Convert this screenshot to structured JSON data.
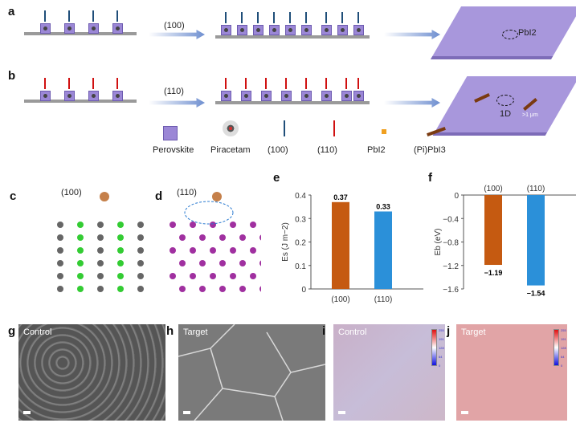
{
  "panels": {
    "a": "a",
    "b": "b",
    "c": "c",
    "d": "d",
    "e": "e",
    "f": "f",
    "g": "g",
    "h": "h",
    "i": "i",
    "j": "j"
  },
  "schematic": {
    "arrow_a_label": "(100)",
    "arrow_b_label": "(110)",
    "a_3d_label": "PbI2",
    "b_3d_label": "1D",
    "b_3d_size": ">1 μm"
  },
  "legend": [
    {
      "label": "Perovskite",
      "icon": "perovskite-cube-icon"
    },
    {
      "label": "Piracetam",
      "icon": "piracetam-molecule-icon"
    },
    {
      "label": "(100)",
      "icon": "arrow-blue-icon",
      "color": "#1f4e79"
    },
    {
      "label": "(110)",
      "icon": "arrow-red-icon",
      "color": "#d01010"
    },
    {
      "label": "PbI2",
      "icon": "pbi2-square-icon",
      "color": "#f0a020"
    },
    {
      "label": "(Pi)PbI3",
      "icon": "rod-icon",
      "color": "#7a3a10"
    }
  ],
  "structures": {
    "c_label": "(100)",
    "d_label": "(110)"
  },
  "chart_data": [
    {
      "type": "bar",
      "panel": "e",
      "categories": [
        "(100)",
        "(110)"
      ],
      "values": [
        0.37,
        0.33
      ],
      "data_labels": [
        "0.37",
        "0.33"
      ],
      "ylabel": "Es (J m−2)",
      "ylim": [
        0,
        0.4
      ],
      "yticks": [
        "0",
        "0.1",
        "0.2",
        "0.3",
        "0.4"
      ],
      "colors": [
        "#c55a11",
        "#2b90d9"
      ]
    },
    {
      "type": "bar",
      "panel": "f",
      "categories": [
        "(100)",
        "(110)"
      ],
      "values": [
        -1.19,
        -1.54
      ],
      "data_labels": [
        "−1.19",
        "−1.54"
      ],
      "ylabel": "Eb (eV)",
      "ylim": [
        -1.6,
        0
      ],
      "yticks": [
        "0",
        "−0.4",
        "−0.8",
        "−1.2",
        "−1.6"
      ],
      "colors": [
        "#c55a11",
        "#2b90d9"
      ]
    }
  ],
  "micrographs": {
    "g": "Control",
    "h": "Target",
    "i": "Control",
    "j": "Target"
  },
  "colorbar_ticks": [
    "255",
    "191",
    "128",
    "64",
    "0"
  ]
}
